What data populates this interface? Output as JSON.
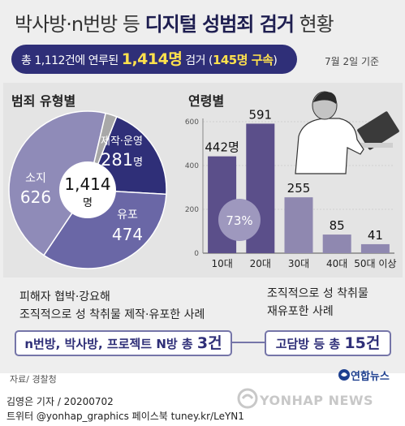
{
  "title": {
    "part1": "박사방·n번방 등 ",
    "part2": "디지털 성범죄 검거",
    "part3": " 현황"
  },
  "summary": {
    "prefix": "총 1,112건에 연루된 ",
    "total": "1,414명",
    "mid": " 검거 (",
    "detained": "145명 구속",
    "suffix": ")"
  },
  "date": "7월 2일 기준",
  "pie_title": "범죄 유형별",
  "bar_title": "연령별",
  "pie_center": {
    "value": "1,414",
    "unit": "명"
  },
  "pie_labels": [
    {
      "name": "제작·운영",
      "value": "281",
      "unit": "명"
    },
    {
      "name": "유포",
      "value": "474",
      "unit": ""
    },
    {
      "name": "소지",
      "value": "626",
      "unit": ""
    }
  ],
  "bar_note": "73%",
  "bar_value_labels": [
    "442명",
    "591",
    "255",
    "85",
    "41"
  ],
  "caption_left": [
    "피해자 협박·강요해",
    "조직적으로 성 착취물 제작·유포한 사례"
  ],
  "caption_right": [
    "조직적으로 성 착취물",
    "재유포한 사례"
  ],
  "pill_left": {
    "text": "n번방, 박사방, 프로젝트 N방 총 ",
    "num": "3건"
  },
  "pill_right": {
    "text": "고담방 등 총 ",
    "num": "15건"
  },
  "source": "자료/ 경찰청",
  "credit": {
    "line1": "김영은 기자 / 20200702",
    "line2": "트위터 @yonhap_graphics  페이스북 tuney.kr/LeYN1"
  },
  "brand": {
    "yna": "연합뉴스",
    "yonhap": "YONHAP NEWS"
  },
  "colors": {
    "navy": "#2f2f78",
    "bar": "#5b4f8a",
    "bar_light": "#8f88b0",
    "grey": "#a0a0a0"
  },
  "chart_data": [
    {
      "type": "pie",
      "title": "범죄 유형별",
      "categories": [
        "제작·운영",
        "유포",
        "소지",
        ""
      ],
      "values": [
        281,
        474,
        626,
        33
      ],
      "total": 1414,
      "colors": [
        "#2f2f78",
        "#6a67a6",
        "#8f8bb8",
        "#a8a8a8"
      ]
    },
    {
      "type": "bar",
      "title": "연령별",
      "categories": [
        "10대",
        "20대",
        "30대",
        "40대",
        "50대 이상"
      ],
      "values": [
        442,
        591,
        255,
        85,
        41
      ],
      "ylim": [
        0,
        600
      ],
      "yticks": [
        0,
        200,
        400,
        600
      ],
      "annotation": "73%",
      "grid": true
    }
  ]
}
